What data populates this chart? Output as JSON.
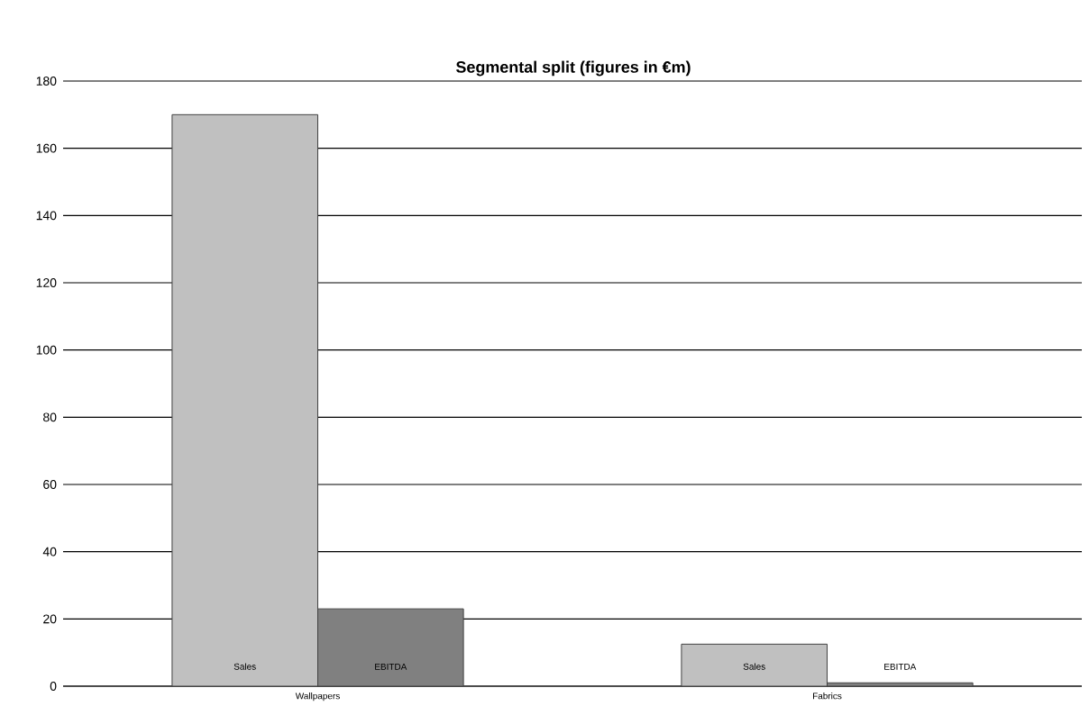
{
  "chart_data": {
    "type": "bar",
    "title": "Segmental split (figures in €m)",
    "categories": [
      "Wallpapers",
      "Fabrics"
    ],
    "series": [
      {
        "name": "Sales",
        "color": "#c0c0c0",
        "values": [
          170,
          12.5
        ]
      },
      {
        "name": "EBITDA",
        "color": "#808080",
        "values": [
          23,
          1
        ]
      }
    ],
    "ylim": [
      0,
      180
    ],
    "yticks": [
      0,
      20,
      40,
      60,
      80,
      100,
      120,
      140,
      160,
      180
    ],
    "grid": "y"
  }
}
